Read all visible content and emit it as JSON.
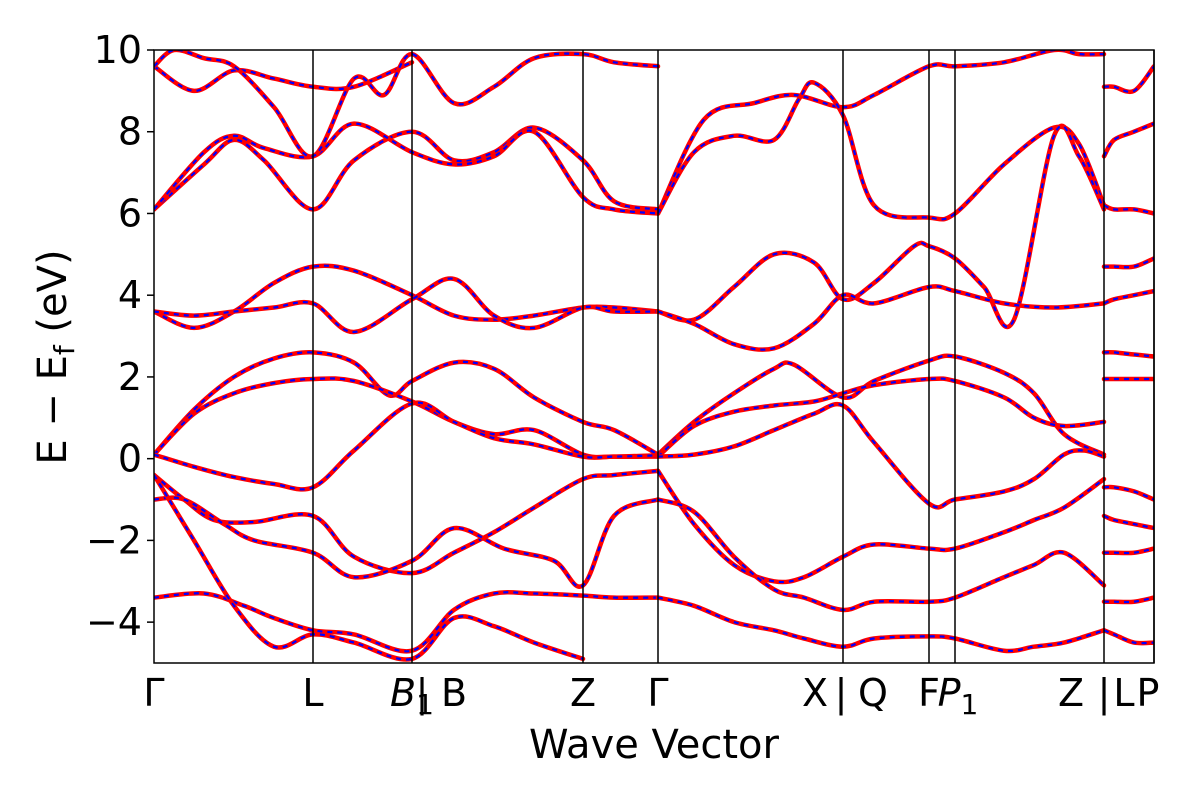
{
  "chart_data": {
    "type": "line",
    "title": "",
    "xlabel": "Wave Vector",
    "ylabel": "E − E_f (eV)",
    "ylabel_main": "E − E",
    "ylabel_sub": "f",
    "ylabel_unit": " (eV)",
    "ylim": [
      -5,
      10
    ],
    "yticks": [
      -4,
      -2,
      0,
      2,
      4,
      6,
      8,
      10
    ],
    "xlim": [
      0,
      100
    ],
    "grid": false,
    "legend": "none",
    "colors": {
      "line": "#ff0000",
      "dash": "#0000ff",
      "axis": "#000000"
    },
    "kpoints": [
      {
        "label": "Γ",
        "pos": 0
      },
      {
        "label": "L",
        "pos": 15.9
      },
      {
        "label": "B",
        "sub": "1",
        "pos": 25.8,
        "italic": true
      },
      {
        "label": "|",
        "pos": 26.8
      },
      {
        "label": "B",
        "pos": 30.0
      },
      {
        "label": "Z",
        "pos": 42.9
      },
      {
        "label": "Γ",
        "pos": 50.4
      },
      {
        "label": "X",
        "pos": 66.1
      },
      {
        "label": "|",
        "pos": 68.7
      },
      {
        "label": "Q",
        "pos": 71.9
      },
      {
        "label": "F",
        "pos": 77.5
      },
      {
        "label": "P",
        "sub": "1",
        "pos": 80.4,
        "italic": true
      },
      {
        "label": "Z",
        "pos": 91.7
      },
      {
        "label": "|",
        "pos": 95.0
      },
      {
        "label": "L",
        "pos": 97.0
      },
      {
        "label": "P",
        "pos": 99.4
      }
    ],
    "vlines": [
      15.9,
      25.8,
      42.9,
      50.4,
      68.9,
      77.5,
      80.1,
      95.0,
      100
    ],
    "series": [
      {
        "x": [
          0,
          5,
          8,
          11,
          15.9,
          20,
          25.8,
          30,
          34,
          38,
          42.9,
          46,
          50.4
        ],
        "y": [
          6.1,
          7.2,
          7.8,
          7.3,
          6.1,
          7.3,
          8.0,
          7.3,
          7.5,
          8.1,
          7.3,
          6.3,
          6.1
        ]
      },
      {
        "x": [
          0,
          5,
          8,
          11,
          15.9,
          20,
          25.8,
          30,
          34,
          38,
          42.9,
          46,
          50.4
        ],
        "y": [
          6.1,
          7.5,
          7.9,
          7.6,
          7.4,
          8.2,
          7.5,
          7.2,
          7.4,
          8.0,
          6.4,
          6.1,
          6.0
        ]
      },
      {
        "x": [
          0,
          4,
          8,
          12,
          15.9,
          20,
          25.8
        ],
        "y": [
          9.6,
          9.0,
          9.5,
          9.3,
          9.1,
          9.1,
          9.7
        ]
      },
      {
        "x": [
          0,
          2,
          5,
          8,
          12,
          15.9,
          20,
          23,
          25.8,
          30,
          34,
          38,
          42.9,
          46,
          50.4
        ],
        "y": [
          9.6,
          10.0,
          9.8,
          9.6,
          8.6,
          7.4,
          9.3,
          8.9,
          9.9,
          8.7,
          9.1,
          9.8,
          9.9,
          9.7,
          9.6
        ]
      },
      {
        "x": [
          0,
          4,
          8,
          12,
          15.9,
          20,
          25.8,
          30,
          34,
          38,
          42.9,
          46,
          50.4
        ],
        "y": [
          3.6,
          3.2,
          3.6,
          4.3,
          4.7,
          4.6,
          4.0,
          3.5,
          3.4,
          3.5,
          3.7,
          3.7,
          3.6
        ]
      },
      {
        "x": [
          0,
          4,
          8,
          12,
          15.9,
          20,
          25.8,
          30,
          34,
          38,
          42.9,
          46,
          50.4
        ],
        "y": [
          3.6,
          3.5,
          3.6,
          3.7,
          3.8,
          3.1,
          3.9,
          4.4,
          3.5,
          3.2,
          3.7,
          3.6,
          3.6
        ]
      },
      {
        "x": [
          0,
          4,
          8,
          12,
          15.9,
          20,
          23.5,
          25.8,
          30,
          34,
          38,
          42.9,
          46,
          50.4
        ],
        "y": [
          0.1,
          1.2,
          2.0,
          2.45,
          2.6,
          2.35,
          1.55,
          1.9,
          2.35,
          2.2,
          1.5,
          0.9,
          0.7,
          0.1
        ]
      },
      {
        "x": [
          0,
          4,
          8,
          12,
          15.9,
          20,
          25.8,
          30,
          34,
          38,
          42.9,
          46,
          50.4
        ],
        "y": [
          0.1,
          1.1,
          1.6,
          1.85,
          1.95,
          1.9,
          1.4,
          0.9,
          0.6,
          0.7,
          0.1,
          0.05,
          0.05
        ]
      },
      {
        "x": [
          0,
          4,
          8,
          12,
          15.9,
          20,
          25.8,
          30,
          34,
          38,
          42.9,
          46,
          50.4
        ],
        "y": [
          0.1,
          -0.2,
          -0.45,
          -0.62,
          -0.7,
          0.2,
          1.35,
          0.9,
          0.5,
          0.35,
          0.05,
          0.05,
          0.08
        ]
      },
      {
        "x": [
          0,
          3,
          6,
          10,
          15.9,
          20,
          25.8,
          30,
          34,
          38,
          42.9,
          46,
          50.4
        ],
        "y": [
          -0.4,
          -1.0,
          -1.5,
          -1.55,
          -1.4,
          -2.4,
          -2.8,
          -2.3,
          -1.8,
          -1.2,
          -0.5,
          -0.4,
          -0.3
        ]
      },
      {
        "x": [
          0,
          3,
          7,
          10,
          15.9,
          20,
          25.8,
          30,
          35,
          40,
          42.9,
          46,
          50.4
        ],
        "y": [
          -1.0,
          -1.0,
          -1.6,
          -2.0,
          -2.3,
          -2.9,
          -2.5,
          -1.7,
          -2.2,
          -2.5,
          -3.1,
          -1.4,
          -1.0
        ]
      },
      {
        "x": [
          0,
          5,
          9,
          12,
          15.9,
          20,
          25.8,
          30,
          34,
          38,
          42.9,
          46,
          50.4
        ],
        "y": [
          -3.4,
          -3.3,
          -3.6,
          -3.9,
          -4.2,
          -4.3,
          -4.7,
          -3.7,
          -3.3,
          -3.3,
          -3.35,
          -3.4,
          -3.4
        ]
      },
      {
        "x": [
          0,
          4,
          8,
          12,
          15.9,
          20,
          25.8,
          30,
          34,
          38,
          42.9
        ],
        "y": [
          -0.4,
          -2.0,
          -3.6,
          -4.6,
          -4.3,
          -4.5,
          -4.9,
          -3.9,
          -4.1,
          -4.5,
          -4.9
        ]
      },
      {
        "x": [
          50.4,
          55,
          60,
          64,
          68.9,
          72,
          77.5,
          80.1,
          85,
          90,
          92.5,
          95
        ],
        "y": [
          6.0,
          8.3,
          8.7,
          8.9,
          8.6,
          8.9,
          9.6,
          9.6,
          9.7,
          10.0,
          9.9,
          9.9
        ]
      },
      {
        "x": [
          50.4,
          54,
          58,
          62,
          64.5,
          66,
          68.9,
          72,
          77.5,
          80.1,
          85,
          90,
          92.5,
          95
        ],
        "y": [
          6.0,
          7.5,
          7.9,
          7.8,
          8.8,
          9.2,
          8.4,
          6.2,
          5.9,
          6.0,
          7.2,
          8.1,
          7.7,
          6.2
        ]
      },
      {
        "x": [
          50.4,
          54,
          58,
          62,
          66,
          68.9,
          72,
          76,
          77.5,
          80.1,
          83,
          86,
          90,
          92.5,
          95
        ],
        "y": [
          3.6,
          3.4,
          4.2,
          5.0,
          4.8,
          3.9,
          4.3,
          5.2,
          5.2,
          4.9,
          4.2,
          3.4,
          7.9,
          7.4,
          6.1
        ]
      },
      {
        "x": [
          50.4,
          54,
          58,
          62,
          66,
          68.9,
          72,
          77.5,
          80.1,
          85,
          90,
          95
        ],
        "y": [
          3.6,
          3.3,
          2.8,
          2.7,
          3.3,
          4.0,
          3.8,
          4.2,
          4.1,
          3.8,
          3.7,
          3.8
        ]
      },
      {
        "x": [
          50.4,
          54,
          58,
          62,
          64,
          68.9,
          72,
          77.5,
          80.1,
          85,
          88,
          91,
          95
        ],
        "y": [
          0.1,
          0.9,
          1.6,
          2.2,
          2.3,
          1.5,
          1.9,
          2.4,
          2.5,
          2.1,
          1.6,
          0.6,
          0.1
        ]
      },
      {
        "x": [
          50.4,
          54,
          58,
          62,
          66,
          68.9,
          72,
          77.5,
          80.1,
          85,
          88,
          91,
          95
        ],
        "y": [
          0.05,
          0.8,
          1.15,
          1.3,
          1.4,
          1.6,
          1.8,
          1.95,
          1.9,
          1.5,
          1.0,
          0.8,
          0.9
        ]
      },
      {
        "x": [
          50.4,
          54,
          58,
          62,
          66,
          68.9,
          72,
          77.5,
          80.1,
          85,
          88,
          91,
          93,
          95
        ],
        "y": [
          0.05,
          0.1,
          0.3,
          0.7,
          1.1,
          1.3,
          0.4,
          -1.1,
          -1.0,
          -0.8,
          -0.5,
          0.1,
          0.2,
          0.05
        ]
      },
      {
        "x": [
          50.4,
          54,
          58,
          62,
          65,
          68.9,
          72,
          77.5,
          80.1,
          85,
          88,
          91,
          95
        ],
        "y": [
          -0.3,
          -1.6,
          -2.6,
          -3.0,
          -2.9,
          -2.4,
          -2.1,
          -2.2,
          -2.2,
          -1.8,
          -1.5,
          -1.2,
          -0.5
        ]
      },
      {
        "x": [
          50.4,
          54,
          58,
          62,
          65,
          68.9,
          72,
          77.5,
          80.1,
          85,
          88,
          91,
          95
        ],
        "y": [
          -1.0,
          -1.3,
          -2.4,
          -3.2,
          -3.4,
          -3.7,
          -3.5,
          -3.5,
          -3.4,
          -2.9,
          -2.6,
          -2.3,
          -3.1
        ]
      },
      {
        "x": [
          50.4,
          54,
          58,
          62,
          65,
          68.9,
          72,
          77.5,
          80.1,
          85,
          88,
          91,
          95
        ],
        "y": [
          -3.4,
          -3.6,
          -4.0,
          -4.2,
          -4.4,
          -4.6,
          -4.4,
          -4.35,
          -4.4,
          -4.7,
          -4.6,
          -4.5,
          -4.2
        ]
      },
      {
        "x": [
          95,
          96,
          98,
          100
        ],
        "y": [
          9.1,
          9.1,
          9.0,
          9.6
        ]
      },
      {
        "x": [
          95,
          96,
          98,
          100
        ],
        "y": [
          7.4,
          7.8,
          8.0,
          8.2
        ]
      },
      {
        "x": [
          95,
          96,
          98,
          100
        ],
        "y": [
          6.2,
          6.1,
          6.1,
          6.0
        ]
      },
      {
        "x": [
          95,
          96,
          98,
          100
        ],
        "y": [
          4.7,
          4.7,
          4.7,
          4.9
        ]
      },
      {
        "x": [
          95,
          96,
          98,
          100
        ],
        "y": [
          3.8,
          3.9,
          4.0,
          4.1
        ]
      },
      {
        "x": [
          95,
          96,
          98,
          100
        ],
        "y": [
          2.6,
          2.6,
          2.55,
          2.5
        ]
      },
      {
        "x": [
          95,
          96,
          98,
          100
        ],
        "y": [
          1.95,
          1.95,
          1.95,
          1.95
        ]
      },
      {
        "x": [
          95,
          96,
          98,
          100
        ],
        "y": [
          -0.7,
          -0.7,
          -0.8,
          -1.0
        ]
      },
      {
        "x": [
          95,
          96,
          98,
          100
        ],
        "y": [
          -1.4,
          -1.5,
          -1.6,
          -1.7
        ]
      },
      {
        "x": [
          95,
          96,
          98,
          100
        ],
        "y": [
          -2.3,
          -2.3,
          -2.3,
          -2.2
        ]
      },
      {
        "x": [
          95,
          96,
          98,
          100
        ],
        "y": [
          -3.5,
          -3.5,
          -3.5,
          -3.4
        ]
      },
      {
        "x": [
          95,
          96,
          98,
          100
        ],
        "y": [
          -4.2,
          -4.3,
          -4.5,
          -4.5
        ]
      }
    ]
  }
}
